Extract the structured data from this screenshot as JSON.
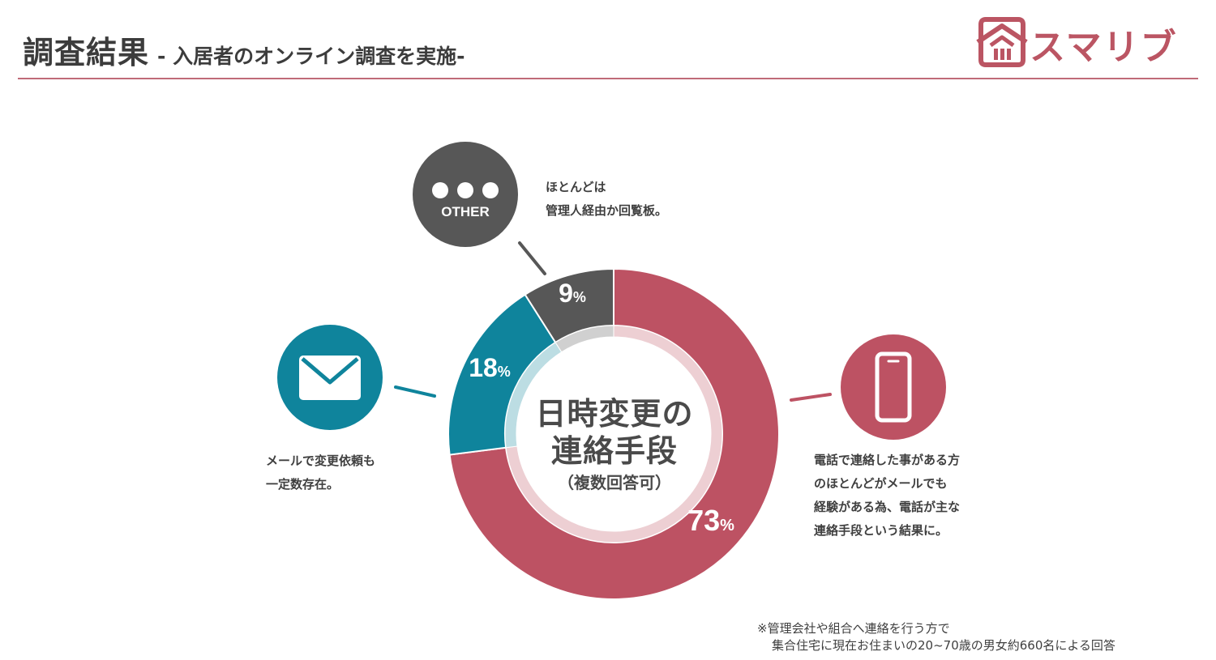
{
  "header": {
    "title_main": "調査結果",
    "title_sub": "- 入居者のオンライン調査を実施-",
    "logo_text": "スマリブ",
    "accent_color": "#bb5563"
  },
  "chart_data": {
    "type": "pie",
    "variant": "donut",
    "center_title_line1": "日時変更の",
    "center_title_line2": "連絡手段",
    "center_subtitle": "（複数回答可）",
    "slices": [
      {
        "value": 73,
        "label": "73",
        "unit": "%",
        "color": "#bd5263",
        "icon": "smartphone-icon",
        "note_lines": [
          "電話で連絡した事がある方",
          "のほとんどがメールでも",
          "経験がある為、電話が主な",
          "連絡手段という結果に。"
        ]
      },
      {
        "value": 18,
        "label": "18",
        "unit": "%",
        "color": "#0f849c",
        "icon": "envelope-icon",
        "note_lines": [
          "メールで変更依頼も",
          "一定数存在。"
        ]
      },
      {
        "value": 9,
        "label": "9",
        "unit": "%",
        "color": "#575757",
        "icon": "more-dots-icon",
        "icon_label": "OTHER",
        "note_lines": [
          "ほとんどは",
          "管理人経由か回覧板。"
        ]
      }
    ]
  },
  "footnote": {
    "line1": "※管理会社や組合へ連絡を行う方で",
    "line2": "集合住宅に現在お住まいの20~70歳の男女約660名による回答"
  }
}
